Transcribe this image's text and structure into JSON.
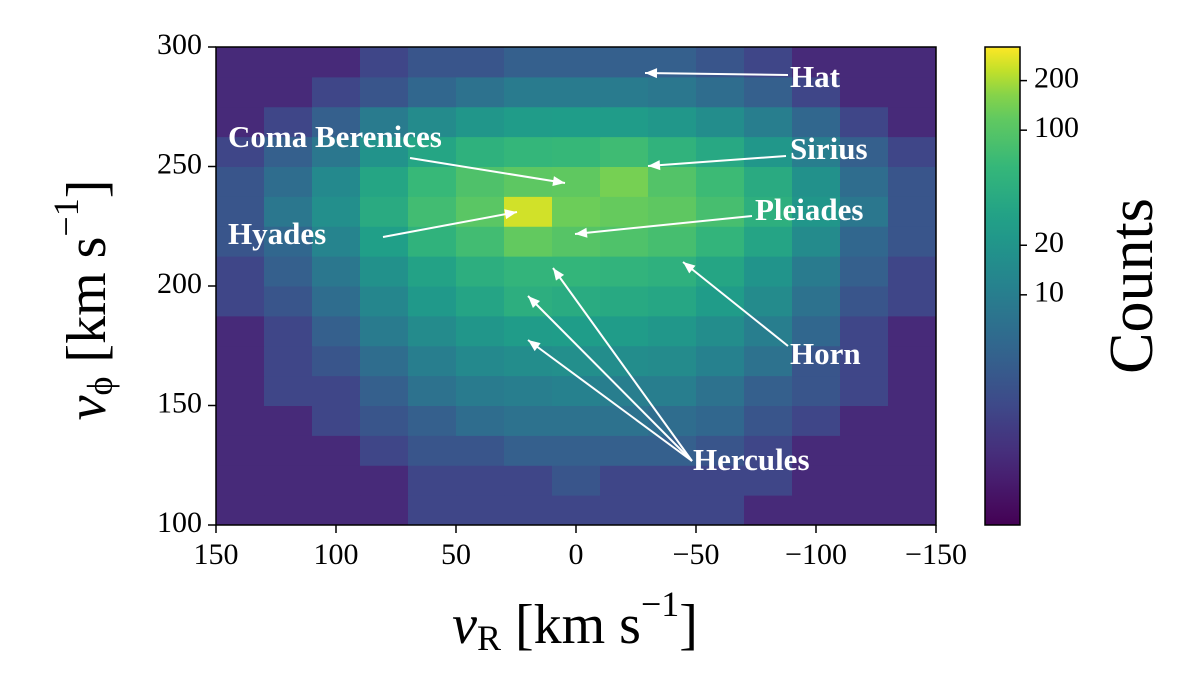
{
  "chart_data": {
    "type": "heatmap",
    "x_label": {
      "symbol": "v",
      "subscript": "R",
      "unit": "[km s",
      "exponent": "−1",
      "close": "]"
    },
    "y_label": {
      "symbol": "v",
      "subscript": "ϕ",
      "unit": "[km s",
      "exponent": "−1",
      "close": "]"
    },
    "colorbar_label": "Counts",
    "xlim": [
      150,
      -150
    ],
    "ylim": [
      100,
      300
    ],
    "xticks": [
      150,
      100,
      50,
      0,
      {
        "value": -50,
        "label": "−50"
      },
      {
        "value": -100,
        "label": "−100"
      },
      {
        "value": -150,
        "label": "−150"
      }
    ],
    "yticks": [
      100,
      150,
      200,
      250,
      300
    ],
    "clim": [
      0.4,
      320
    ],
    "clog": true,
    "colormap": "viridis",
    "cticks": [
      10,
      20,
      100,
      200
    ],
    "x_edges": [
      150,
      130,
      110,
      90,
      70,
      50,
      30,
      10,
      -10,
      -30,
      -50,
      -70,
      -90,
      -110,
      -130,
      -150
    ],
    "y_edges": [
      100,
      112.5,
      125,
      137.5,
      150,
      162.5,
      175,
      187.5,
      200,
      212.5,
      225,
      237.5,
      250,
      262.5,
      275,
      287.5,
      300
    ],
    "values": [
      [
        1,
        1,
        1,
        1,
        2,
        2,
        2,
        2,
        2,
        2,
        2,
        1,
        1,
        1,
        1
      ],
      [
        1,
        1,
        1,
        1,
        2,
        2,
        2,
        3,
        2,
        2,
        2,
        2,
        1,
        1,
        1
      ],
      [
        1,
        1,
        1,
        2,
        3,
        3,
        4,
        4,
        4,
        4,
        3,
        2,
        1,
        1,
        1
      ],
      [
        1,
        1,
        2,
        3,
        4,
        6,
        7,
        7,
        7,
        6,
        5,
        3,
        2,
        1,
        1
      ],
      [
        1,
        2,
        2,
        4,
        7,
        9,
        10,
        11,
        10,
        10,
        7,
        4,
        3,
        2,
        1
      ],
      [
        1,
        2,
        3,
        6,
        10,
        14,
        16,
        17,
        16,
        15,
        11,
        7,
        3,
        2,
        1
      ],
      [
        1,
        2,
        4,
        9,
        15,
        21,
        25,
        26,
        25,
        22,
        16,
        10,
        5,
        2,
        1
      ],
      [
        2,
        3,
        6,
        13,
        23,
        33,
        45,
        41,
        38,
        35,
        25,
        15,
        7,
        3,
        2
      ],
      [
        2,
        4,
        8,
        18,
        31,
        45,
        55,
        56,
        53,
        48,
        34,
        20,
        9,
        4,
        2
      ],
      [
        3,
        5,
        12,
        28,
        51,
        73,
        120,
        100,
        90,
        78,
        55,
        33,
        15,
        5,
        3
      ],
      [
        3,
        8,
        17,
        40,
        73,
        105,
        250,
        140,
        125,
        112,
        79,
        47,
        21,
        8,
        3
      ],
      [
        3,
        6,
        14,
        34,
        62,
        89,
        110,
        115,
        150,
        95,
        67,
        40,
        18,
        6,
        3
      ],
      [
        2,
        4,
        8,
        19,
        34,
        49,
        58,
        61,
        70,
        52,
        37,
        22,
        10,
        4,
        2
      ],
      [
        1,
        2,
        4,
        9,
        15,
        21,
        25,
        26,
        25,
        22,
        16,
        10,
        5,
        2,
        1
      ],
      [
        1,
        1,
        2,
        3,
        5,
        7,
        9,
        9,
        9,
        8,
        6,
        4,
        2,
        1,
        1
      ],
      [
        1,
        1,
        1,
        2,
        3,
        3,
        4,
        4,
        4,
        4,
        3,
        2,
        1,
        1,
        1
      ]
    ],
    "annotations": [
      "Hat",
      "Coma Berenices",
      "Sirius",
      "Pleiades",
      "Hyades",
      "Horn",
      "Hercules"
    ]
  }
}
